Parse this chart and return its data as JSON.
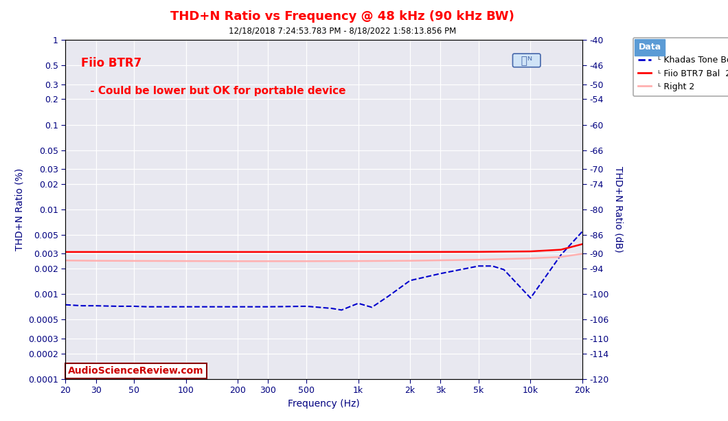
{
  "title": "THD+N Ratio vs Frequency @ 48 kHz (90 kHz BW)",
  "subtitle": "12/18/2018 7:24:53.783 PM - 8/18/2022 1:58:13.856 PM",
  "xlabel": "Frequency (Hz)",
  "ylabel_left": "THD+N Ratio (%)",
  "ylabel_right": "THD+N Ratio (dB)",
  "title_color": "#FF0000",
  "subtitle_color": "#000000",
  "annotation_line1": "Fiio BTR7",
  "annotation_line2": " - Could be lower but OK for portable device",
  "annotation_color": "#FF0000",
  "watermark": "AudioScienceReview.com",
  "background_color": "#FFFFFF",
  "plot_bg_color": "#E8E8F0",
  "grid_color": "#FFFFFF",
  "xlim": [
    20,
    20000
  ],
  "ylim_pct": [
    0.0001,
    1.0
  ],
  "legend_title": "Data",
  "legend_title_bg": "#5B9BD5",
  "legend_title_color": "#FFFFFF",
  "legend_bg": "#FFFFFF",
  "legend_border": "#AAAAAA",
  "lines": [
    {
      "label": "ᴸ Khadas Tone Board",
      "color": "#0000CC",
      "linestyle": "--",
      "linewidth": 1.5,
      "x": [
        20,
        25,
        30,
        40,
        50,
        60,
        80,
        100,
        150,
        200,
        300,
        500,
        700,
        800,
        1000,
        1200,
        1500,
        2000,
        3000,
        5000,
        6000,
        7000,
        10000,
        15000,
        20000
      ],
      "y": [
        0.00075,
        0.00073,
        0.00073,
        0.00072,
        0.00072,
        0.00071,
        0.00071,
        0.00071,
        0.00071,
        0.00071,
        0.00071,
        0.00072,
        0.00068,
        0.00065,
        0.00078,
        0.0007,
        0.00095,
        0.00145,
        0.00175,
        0.00215,
        0.00215,
        0.00195,
        0.0009,
        0.0029,
        0.0055
      ]
    },
    {
      "label": "ᴸ Fiio BTR7 Bal  2",
      "color": "#FF0000",
      "linestyle": "-",
      "linewidth": 1.8,
      "x": [
        20,
        30,
        50,
        100,
        200,
        500,
        1000,
        2000,
        5000,
        10000,
        15000,
        20000
      ],
      "y": [
        0.00315,
        0.00315,
        0.00315,
        0.00315,
        0.00315,
        0.00315,
        0.00315,
        0.00315,
        0.00316,
        0.0032,
        0.00335,
        0.0039
      ]
    },
    {
      "label": "ᴸ Right 2",
      "color": "#FFB0B0",
      "linestyle": "-",
      "linewidth": 1.8,
      "x": [
        20,
        30,
        50,
        100,
        200,
        500,
        1000,
        2000,
        5000,
        10000,
        15000,
        20000
      ],
      "y": [
        0.0025,
        0.00248,
        0.00247,
        0.00246,
        0.00245,
        0.00245,
        0.00246,
        0.00248,
        0.00255,
        0.00265,
        0.00275,
        0.003
      ]
    }
  ],
  "ytick_positions": [
    0.0001,
    0.0002,
    0.0003,
    0.0005,
    0.001,
    0.002,
    0.003,
    0.005,
    0.01,
    0.02,
    0.03,
    0.05,
    0.1,
    0.2,
    0.3,
    0.5,
    1.0
  ],
  "ytick_labels": [
    "0.0001",
    "0.0002",
    "0.0003",
    "0.0005",
    "0.001",
    "0.002",
    "0.003",
    "0.005",
    "0.01",
    "0.02",
    "0.03",
    "0.05",
    "0.1",
    "0.2",
    "0.3",
    "0.5",
    "1"
  ],
  "xtick_positions": [
    20,
    30,
    50,
    100,
    200,
    300,
    500,
    1000,
    2000,
    3000,
    5000,
    10000,
    20000
  ],
  "xtick_labels": [
    "20",
    "30",
    "50",
    "100",
    "200",
    "300",
    "500",
    "1k",
    "2k",
    "3k",
    "5k",
    "10k",
    "20k"
  ]
}
